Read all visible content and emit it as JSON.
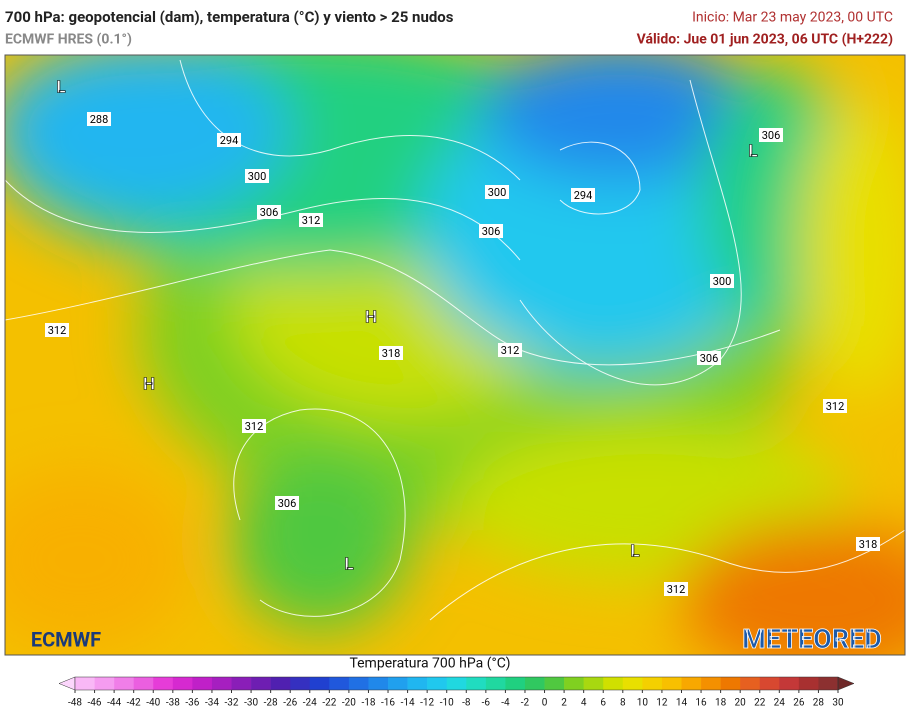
{
  "header": {
    "title": "700 hPa: geopotencial (dam), temperatura (°C) y viento > 25 nudos",
    "subtitle": "ECMWF HRES (0.1°)",
    "init": "Inicio: Mar 23 may 2023, 00 UTC",
    "valid": "Válido: Jue 01 jun 2023, 06 UTC (H+222)"
  },
  "map": {
    "contour_labels": [
      288,
      294,
      300,
      306,
      312,
      300,
      306,
      294,
      306,
      300,
      312,
      318,
      312,
      306,
      312,
      312,
      306,
      312,
      318
    ],
    "pressure_centers": [
      "L",
      "L",
      "H",
      "H",
      "L",
      "L"
    ],
    "logos": [
      "ECMWF",
      "METEORED"
    ]
  },
  "colorbar": {
    "title": "Temperatura 700 hPa (°C)",
    "ticks": [
      -48,
      -46,
      -44,
      -42,
      -40,
      -38,
      -36,
      -34,
      -32,
      -30,
      -28,
      -26,
      -24,
      -22,
      -20,
      -18,
      -16,
      -14,
      -12,
      -10,
      -8,
      -6,
      -4,
      -2,
      0,
      2,
      4,
      6,
      8,
      10,
      12,
      14,
      16,
      18,
      20,
      22,
      24,
      26,
      28,
      30
    ],
    "colors": [
      "#fcd6fc",
      "#f9b8f6",
      "#f59cf0",
      "#f07ee8",
      "#eb5fe0",
      "#e63cd8",
      "#d629d0",
      "#c020c8",
      "#a61fc0",
      "#8a1eb8",
      "#6e1eb2",
      "#5020b0",
      "#3530c0",
      "#2040d0",
      "#2058dc",
      "#2070e4",
      "#2088ea",
      "#20a0ee",
      "#20b6f0",
      "#20c8ee",
      "#20d8e0",
      "#20dcc0",
      "#20d8a0",
      "#20d080",
      "#30c860",
      "#50c840",
      "#80d020",
      "#a8d810",
      "#d0e000",
      "#e8e000",
      "#f4d000",
      "#f8c000",
      "#f8a800",
      "#f49000",
      "#ee7800",
      "#e66020",
      "#d84830",
      "#c43838",
      "#a83030",
      "#8c3030",
      "#6e2828"
    ]
  }
}
